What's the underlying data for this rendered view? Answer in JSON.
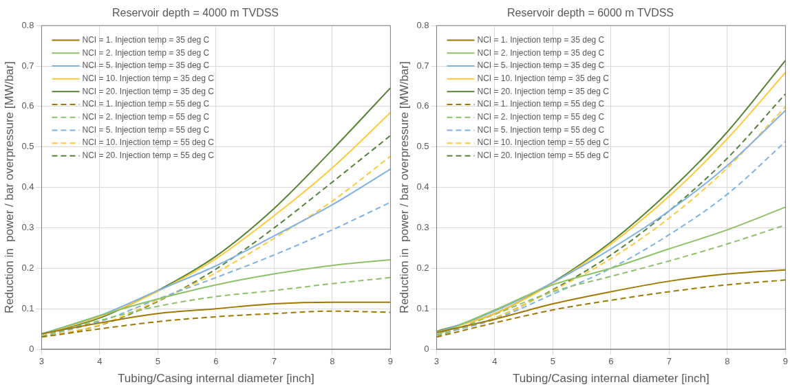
{
  "chart_data": [
    {
      "type": "line",
      "title": "Reservoir depth = 4000 m TVDSS",
      "xlabel": "Tubing/Casing internal diameter [inch]",
      "ylabel": "Reduction in  power / bar overpressure [MW/bar]",
      "x": [
        3,
        4,
        5,
        6,
        7,
        8,
        9
      ],
      "xlim": [
        3,
        9
      ],
      "xticks": [
        3,
        4,
        5,
        6,
        7,
        8,
        9
      ],
      "ylim": [
        0,
        0.8
      ],
      "yticks": [
        0,
        0.1,
        0.2,
        0.3,
        0.4,
        0.5,
        0.6,
        0.7,
        0.8
      ],
      "grid": true,
      "legend": "top left",
      "marker": "none",
      "series": [
        {
          "name": "NCI = 1. Injection temp = 35 deg C",
          "color": "#9e7800",
          "line_style": "solid",
          "values": [
            0.038,
            0.065,
            0.088,
            0.1,
            0.112,
            0.116,
            0.116
          ]
        },
        {
          "name": "NCI = 2. Injection temp = 35 deg C",
          "color": "#8cc168",
          "line_style": "solid",
          "values": [
            0.037,
            0.083,
            0.124,
            0.159,
            0.186,
            0.207,
            0.221
          ]
        },
        {
          "name": "NCI = 5. Injection temp = 35 deg C",
          "color": "#7eb2e4",
          "line_style": "solid",
          "values": [
            0.038,
            0.083,
            0.145,
            0.206,
            0.28,
            0.357,
            0.445
          ]
        },
        {
          "name": "NCI = 10. Injection temp = 35 deg C",
          "color": "#ffc83c",
          "line_style": "solid",
          "values": [
            0.037,
            0.08,
            0.143,
            0.224,
            0.33,
            0.448,
            0.585
          ]
        },
        {
          "name": "NCI = 20. Injection temp = 35 deg C",
          "color": "#548235",
          "line_style": "solid",
          "values": [
            0.037,
            0.077,
            0.145,
            0.23,
            0.348,
            0.493,
            0.646
          ]
        },
        {
          "name": "NCI = 1. Injection temp = 55 deg C",
          "color": "#9e7800",
          "line_style": "dashed",
          "values": [
            0.03,
            0.05,
            0.068,
            0.08,
            0.088,
            0.094,
            0.091
          ]
        },
        {
          "name": "NCI = 2. Injection temp = 55 deg C",
          "color": "#8cc168",
          "line_style": "dashed",
          "values": [
            0.032,
            0.071,
            0.106,
            0.13,
            0.145,
            0.162,
            0.177
          ]
        },
        {
          "name": "NCI = 5. Injection temp = 55 deg C",
          "color": "#7eb2e4",
          "line_style": "dashed",
          "values": [
            0.032,
            0.068,
            0.124,
            0.177,
            0.233,
            0.295,
            0.363
          ]
        },
        {
          "name": "NCI = 10. Injection temp = 55 deg C",
          "color": "#ffc83c",
          "line_style": "dashed",
          "values": [
            0.03,
            0.06,
            0.12,
            0.189,
            0.274,
            0.366,
            0.477
          ]
        },
        {
          "name": "NCI = 20. Injection temp = 55 deg C",
          "color": "#548235",
          "line_style": "dashed",
          "values": [
            0.03,
            0.059,
            0.118,
            0.198,
            0.3,
            0.413,
            0.528
          ]
        }
      ]
    },
    {
      "type": "line",
      "title": "Reservoir depth = 6000 m TVDSS",
      "xlabel": "Tubing/Casing internal diameter [inch]",
      "ylabel": "Reduction in  power / bar overpressure [MW/bar]",
      "x": [
        3,
        4,
        5,
        6,
        7,
        8,
        9
      ],
      "xlim": [
        3,
        9
      ],
      "xticks": [
        3,
        4,
        5,
        6,
        7,
        8,
        9
      ],
      "ylim": [
        0,
        0.8
      ],
      "yticks": [
        0,
        0.1,
        0.2,
        0.3,
        0.4,
        0.5,
        0.6,
        0.7,
        0.8
      ],
      "grid": true,
      "legend": "top left",
      "marker": "none",
      "series": [
        {
          "name": "NCI = 1. Injection temp = 35 deg C",
          "color": "#9e7800",
          "line_style": "solid",
          "values": [
            0.041,
            0.074,
            0.112,
            0.142,
            0.168,
            0.186,
            0.196
          ]
        },
        {
          "name": "NCI = 2. Injection temp = 35 deg C",
          "color": "#8cc168",
          "line_style": "solid",
          "values": [
            0.035,
            0.097,
            0.159,
            0.2,
            0.248,
            0.295,
            0.351
          ]
        },
        {
          "name": "NCI = 5. Injection temp = 35 deg C",
          "color": "#7eb2e4",
          "line_style": "solid",
          "values": [
            0.04,
            0.094,
            0.165,
            0.248,
            0.342,
            0.454,
            0.59
          ]
        },
        {
          "name": "NCI = 10. Injection temp = 35 deg C",
          "color": "#ffc83c",
          "line_style": "solid",
          "values": [
            0.042,
            0.088,
            0.163,
            0.26,
            0.378,
            0.52,
            0.684
          ]
        },
        {
          "name": "NCI = 20. Injection temp = 35 deg C",
          "color": "#548235",
          "line_style": "solid",
          "values": [
            0.044,
            0.088,
            0.165,
            0.265,
            0.39,
            0.537,
            0.714
          ]
        },
        {
          "name": "NCI = 1. Injection temp = 55 deg C",
          "color": "#9e7800",
          "line_style": "dashed",
          "values": [
            0.03,
            0.065,
            0.097,
            0.121,
            0.142,
            0.159,
            0.171
          ]
        },
        {
          "name": "NCI = 2. Injection temp = 55 deg C",
          "color": "#8cc168",
          "line_style": "dashed",
          "values": [
            0.03,
            0.086,
            0.142,
            0.18,
            0.218,
            0.26,
            0.307
          ]
        },
        {
          "name": "NCI = 5. Injection temp = 55 deg C",
          "color": "#7eb2e4",
          "line_style": "dashed",
          "values": [
            0.035,
            0.074,
            0.136,
            0.2,
            0.283,
            0.383,
            0.513
          ]
        },
        {
          "name": "NCI = 10. Injection temp = 55 deg C",
          "color": "#ffc83c",
          "line_style": "dashed",
          "values": [
            0.035,
            0.077,
            0.145,
            0.224,
            0.324,
            0.448,
            0.599
          ]
        },
        {
          "name": "NCI = 20. Injection temp = 55 deg C",
          "color": "#548235",
          "line_style": "dashed",
          "values": [
            0.035,
            0.077,
            0.147,
            0.233,
            0.342,
            0.472,
            0.631
          ]
        }
      ]
    }
  ]
}
